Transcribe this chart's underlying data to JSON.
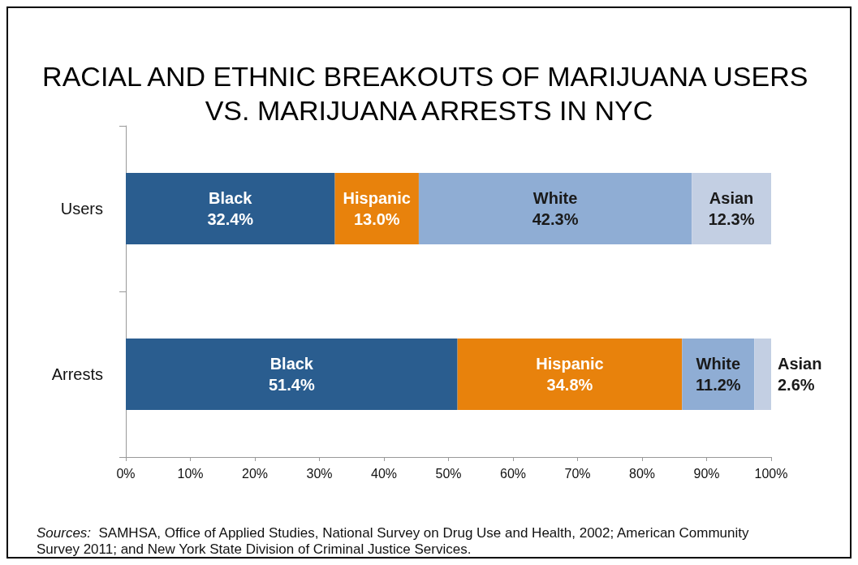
{
  "chart_data": {
    "type": "bar",
    "orientation": "horizontal",
    "stacked": true,
    "title": "RACIAL AND ETHNIC BREAKOUTS OF MARIJUANA USERS VS. MARIJUANA ARRESTS IN NYC",
    "categories": [
      "Users",
      "Arrests"
    ],
    "series": [
      {
        "name": "Black",
        "color": "#2a5d8f",
        "values": [
          32.4,
          51.4
        ],
        "value_labels": [
          "32.4%",
          "51.4%"
        ]
      },
      {
        "name": "Hispanic",
        "color": "#e8820c",
        "values": [
          13.0,
          34.8
        ],
        "value_labels": [
          "13.0%",
          "34.8%"
        ]
      },
      {
        "name": "White",
        "color": "#8fadd4",
        "values": [
          42.3,
          11.2
        ],
        "value_labels": [
          "42.3%",
          "11.2%"
        ]
      },
      {
        "name": "Asian",
        "color": "#c3cfe3",
        "values": [
          12.3,
          2.6
        ],
        "value_labels": [
          "12.3%",
          "2.6%"
        ]
      }
    ],
    "xlim": [
      0,
      100
    ],
    "xticks": [
      {
        "value": 0,
        "label": "0%"
      },
      {
        "value": 10,
        "label": "10%"
      },
      {
        "value": 20,
        "label": "20%"
      },
      {
        "value": 30,
        "label": "30%"
      },
      {
        "value": 40,
        "label": "40%"
      },
      {
        "value": 50,
        "label": "50%"
      },
      {
        "value": 60,
        "label": "60%"
      },
      {
        "value": 70,
        "label": "70%"
      },
      {
        "value": 80,
        "label": "80%"
      },
      {
        "value": 90,
        "label": "90%"
      },
      {
        "value": 100,
        "label": "100%"
      }
    ],
    "grid": false,
    "legend": false,
    "annotations": [
      "Sources: SAMHSA, Office of Applied Studies, National Survey on Drug Use and Health, 2002; American Community Survey 2011; and New York State Division of Criminal Justice Services."
    ]
  }
}
